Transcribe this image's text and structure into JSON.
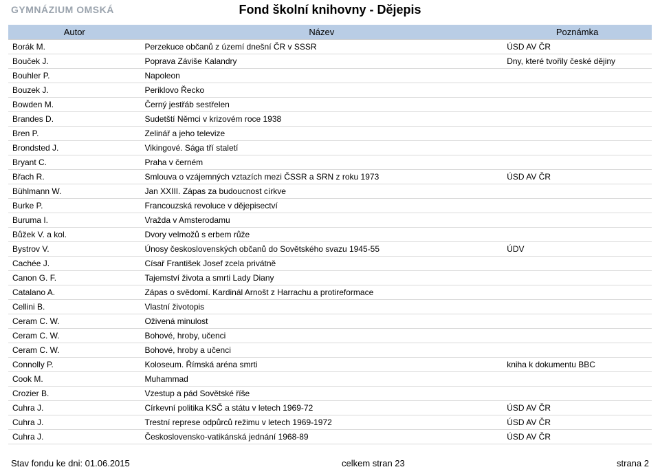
{
  "header": {
    "logo": "GYMNÁZIUM OMSKÁ",
    "title": "Fond školní knihovny - Dějepis"
  },
  "columns": {
    "author": "Autor",
    "title": "Název",
    "note": "Poznámka"
  },
  "rows": [
    {
      "a": "Borák M.",
      "t": "Perzekuce občanů z území dnešní ČR v SSSR",
      "n": "ÚSD AV ČR"
    },
    {
      "a": "Bouček J.",
      "t": "Poprava Záviše Kalandry",
      "n": "Dny, které tvořily české dějiny"
    },
    {
      "a": "Bouhler P.",
      "t": "Napoleon",
      "n": ""
    },
    {
      "a": "Bouzek J.",
      "t": "Periklovo Řecko",
      "n": ""
    },
    {
      "a": "Bowden M.",
      "t": "Černý jestřáb sestřelen",
      "n": ""
    },
    {
      "a": "Brandes D.",
      "t": "Sudetští Němci v krizovém roce 1938",
      "n": ""
    },
    {
      "a": "Bren P.",
      "t": "Zelinář a jeho televize",
      "n": ""
    },
    {
      "a": "Brondsted J.",
      "t": "Vikingové. Sága tří staletí",
      "n": ""
    },
    {
      "a": "Bryant C.",
      "t": "Praha v černém",
      "n": ""
    },
    {
      "a": "Břach R.",
      "t": "Smlouva o vzájemných vztazích mezi ČSSR a SRN z roku 1973",
      "n": "ÚSD AV ČR"
    },
    {
      "a": "Bühlmann W.",
      "t": "Jan XXIII. Zápas za budoucnost církve",
      "n": ""
    },
    {
      "a": "Burke P.",
      "t": "Francouzská revoluce v dějepisectví",
      "n": ""
    },
    {
      "a": "Buruma I.",
      "t": "Vražda v Amsterodamu",
      "n": ""
    },
    {
      "a": "Bůžek V. a kol.",
      "t": "Dvory velmožů s erbem růže",
      "n": ""
    },
    {
      "a": "Bystrov V.",
      "t": "Únosy československých občanů do Sovětského svazu 1945-55",
      "n": "ÚDV"
    },
    {
      "a": "Cachée J.",
      "t": "Císař František Josef zcela privátně",
      "n": ""
    },
    {
      "a": "Canon G. F.",
      "t": "Tajemství života a smrti Lady Diany",
      "n": ""
    },
    {
      "a": "Catalano A.",
      "t": "Zápas o svědomí. Kardinál Arnošt z Harrachu a protireformace",
      "n": ""
    },
    {
      "a": "Cellini B.",
      "t": "Vlastní životopis",
      "n": ""
    },
    {
      "a": "Ceram C. W.",
      "t": "Oživená minulost",
      "n": ""
    },
    {
      "a": "Ceram C. W.",
      "t": "Bohové, hroby, učenci",
      "n": ""
    },
    {
      "a": "Ceram C. W.",
      "t": "Bohové, hroby a učenci",
      "n": ""
    },
    {
      "a": "Connolly P.",
      "t": "Koloseum. Římská aréna smrti",
      "n": "kniha k dokumentu BBC"
    },
    {
      "a": "Cook M.",
      "t": "Muhammad",
      "n": ""
    },
    {
      "a": "Crozier B.",
      "t": "Vzestup a pád Sovětské říše",
      "n": ""
    },
    {
      "a": "Cuhra J.",
      "t": "Církevní politika KSČ a státu v letech 1969-72",
      "n": "ÚSD AV ČR"
    },
    {
      "a": "Cuhra J.",
      "t": "Trestní represe odpůrců režimu v letech 1969-1972",
      "n": "ÚSD AV ČR"
    },
    {
      "a": "Cuhra J.",
      "t": "Československo-vatikánská jednání 1968-89",
      "n": "ÚSD AV ČR"
    }
  ],
  "footer": {
    "left": "Stav fondu ke dni: 01.06.2015",
    "center": "celkem stran 23",
    "right": "strana 2"
  }
}
